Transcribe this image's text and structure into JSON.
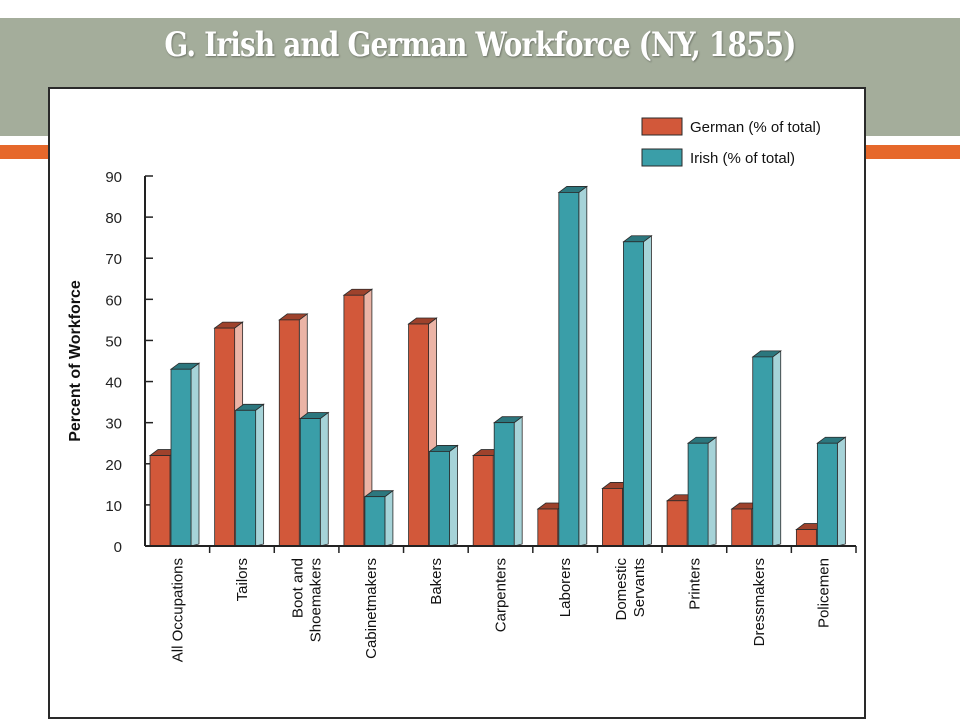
{
  "slide": {
    "title": "G.  Irish and German Workforce (NY, 1855)"
  },
  "colors": {
    "title_bar": "#a4ad9b",
    "accent": "#e6682b",
    "german": "#d2583a",
    "irish": "#3a9ea8"
  },
  "chart_data": {
    "type": "bar",
    "title": "",
    "xlabel": "",
    "ylabel": "Percent of Workforce",
    "ylim": [
      0,
      90
    ],
    "yticks": [
      0,
      10,
      20,
      30,
      40,
      50,
      60,
      70,
      80,
      90
    ],
    "grid": false,
    "legend_position": "top-right",
    "categories": [
      "All Occupations",
      "Tailors",
      "Boot and Shoemakers",
      "Cabinetmakers",
      "Bakers",
      "Carpenters",
      "Laborers",
      "Domestic Servants",
      "Printers",
      "Dressmakers",
      "Policemen"
    ],
    "category_lines": [
      [
        "All Occupations"
      ],
      [
        "Tailors"
      ],
      [
        "Boot and",
        "Shoemakers"
      ],
      [
        "Cabinetmakers"
      ],
      [
        "Bakers"
      ],
      [
        "Carpenters"
      ],
      [
        "Laborers"
      ],
      [
        "Domestic",
        "Servants"
      ],
      [
        "Printers"
      ],
      [
        "Dressmakers"
      ],
      [
        "Policemen"
      ]
    ],
    "series": [
      {
        "name": "German (% of total)",
        "color": "#d2583a",
        "values": [
          22,
          53,
          55,
          61,
          54,
          22,
          9,
          14,
          11,
          9,
          4
        ]
      },
      {
        "name": "Irish (% of total)",
        "color": "#3a9ea8",
        "values": [
          43,
          33,
          31,
          12,
          23,
          30,
          86,
          74,
          25,
          46,
          25
        ]
      }
    ]
  }
}
